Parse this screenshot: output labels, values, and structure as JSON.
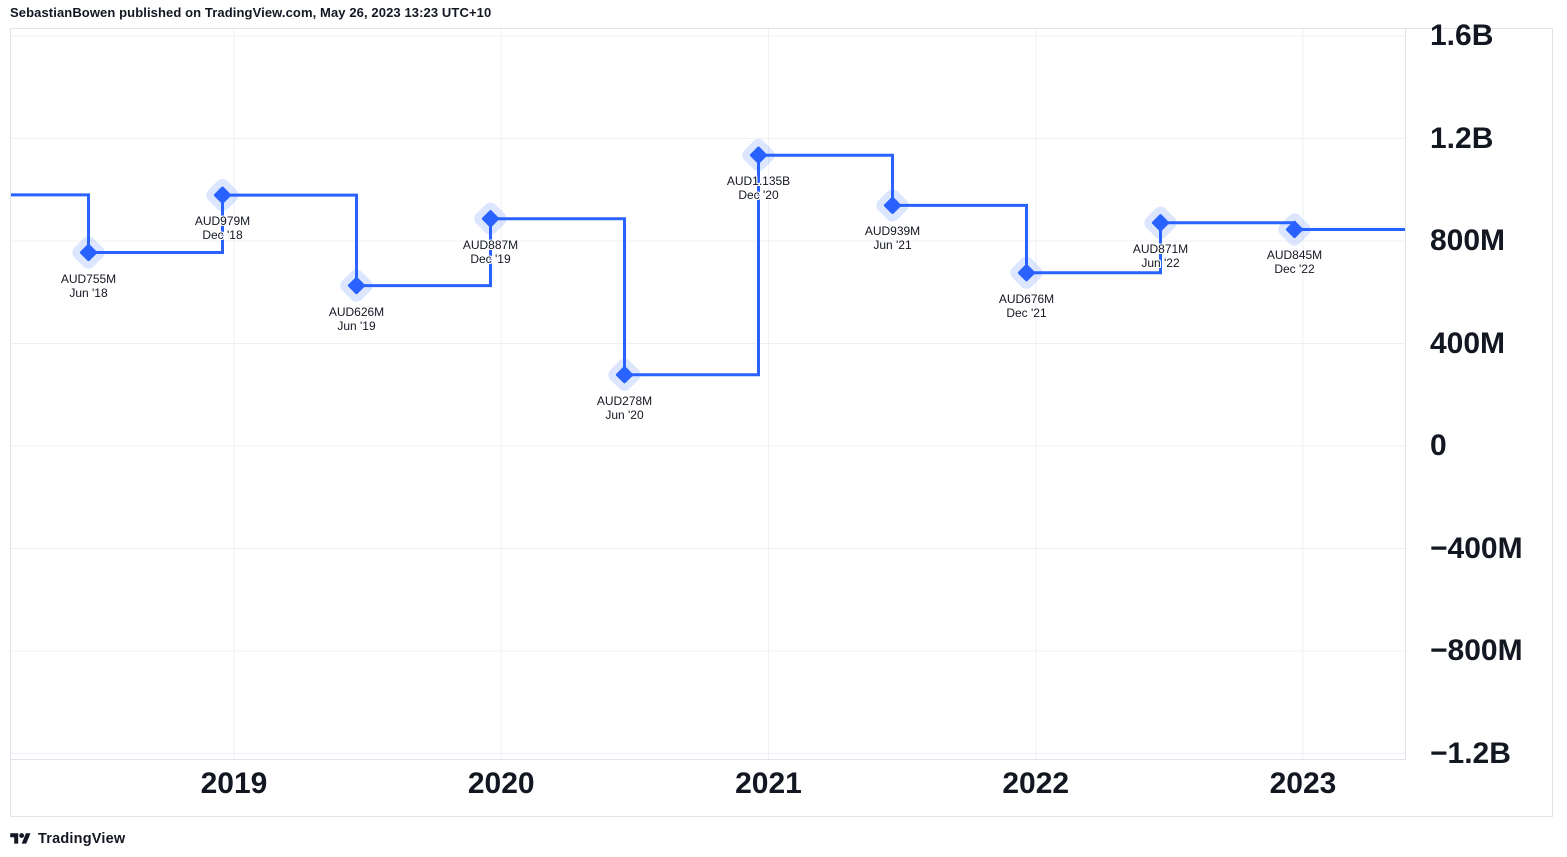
{
  "header": {
    "title": "SebastianBowen published on TradingView.com, May 26, 2023 13:23 UTC+10"
  },
  "footer": {
    "brand": "TradingView"
  },
  "chart_data": {
    "type": "line",
    "line_style": "step-with-diamond-markers",
    "title": "",
    "xlabel": "",
    "ylabel": "",
    "grid": true,
    "legend": false,
    "currency": "AUD",
    "unit": "millions",
    "ylim_m": [
      -1400,
      1630
    ],
    "lead_in_value_m": 980,
    "points": [
      {
        "label": "AUD755M",
        "date": "Jun '18",
        "value_m": 755
      },
      {
        "label": "AUD979M",
        "date": "Dec '18",
        "value_m": 979
      },
      {
        "label": "AUD626M",
        "date": "Jun '19",
        "value_m": 626
      },
      {
        "label": "AUD887M",
        "date": "Dec '19",
        "value_m": 887
      },
      {
        "label": "AUD278M",
        "date": "Jun '20",
        "value_m": 278
      },
      {
        "label": "AUD1.135B",
        "date": "Dec '20",
        "value_m": 1135
      },
      {
        "label": "AUD939M",
        "date": "Jun '21",
        "value_m": 939
      },
      {
        "label": "AUD676M",
        "date": "Dec '21",
        "value_m": 676
      },
      {
        "label": "AUD871M",
        "date": "Jun '22",
        "value_m": 871
      },
      {
        "label": "AUD845M",
        "date": "Dec '22",
        "value_m": 845
      }
    ],
    "y_ticks": [
      {
        "label": "1.6B",
        "value_m": 1600
      },
      {
        "label": "1.2B",
        "value_m": 1200
      },
      {
        "label": "800M",
        "value_m": 800
      },
      {
        "label": "400M",
        "value_m": 400
      },
      {
        "label": "0",
        "value_m": 0
      },
      {
        "label": "−400M",
        "value_m": -400
      },
      {
        "label": "−800M",
        "value_m": -800
      },
      {
        "label": "−1.2B",
        "value_m": -1200
      }
    ],
    "x_ticks": [
      {
        "label": "2019"
      },
      {
        "label": "2020"
      },
      {
        "label": "2021"
      },
      {
        "label": "2022"
      },
      {
        "label": "2023"
      }
    ],
    "colors": {
      "line": "#2962FF",
      "marker": "#2962FF",
      "marker_halo": "rgba(41,98,255,0.16)",
      "grid": "#eff0f3",
      "border": "#e0e3eb",
      "text": "#131722"
    }
  }
}
